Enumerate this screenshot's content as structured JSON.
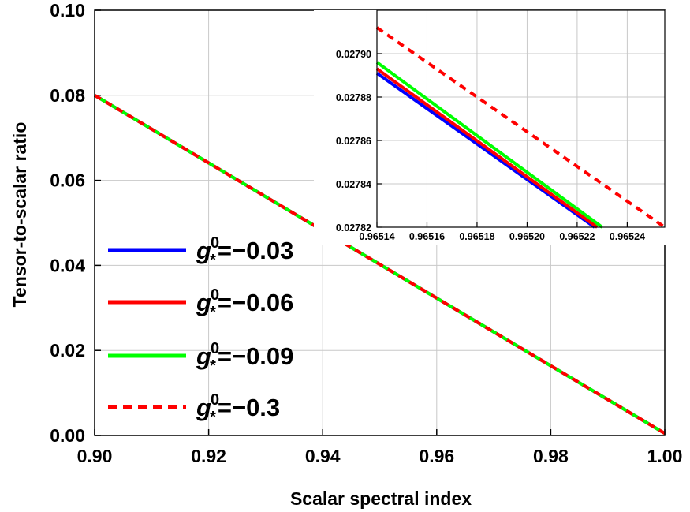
{
  "chart_data": [
    {
      "type": "line",
      "xlabel": "Scalar spectral index",
      "ylabel": "Tensor-to-scalar ratio",
      "xlim": [
        0.9,
        1.0
      ],
      "ylim": [
        0.0,
        0.1
      ],
      "xticks": [
        "0.90",
        "0.92",
        "0.94",
        "0.96",
        "0.98",
        "1.00"
      ],
      "yticks": [
        "0.00",
        "0.02",
        "0.04",
        "0.06",
        "0.08",
        "0.10"
      ],
      "grid": true,
      "legend_position": "bottom-left",
      "series": [
        {
          "name": "=−0.03",
          "color": "#0000ff",
          "style": "solid",
          "x": [
            0.9,
            1.0
          ],
          "y": [
            0.08,
            0.0005
          ]
        },
        {
          "name": "=−0.06",
          "color": "#ff0000",
          "style": "solid",
          "x": [
            0.9,
            1.0
          ],
          "y": [
            0.08,
            0.0005
          ]
        },
        {
          "name": "=−0.09",
          "color": "#00ff00",
          "style": "solid",
          "x": [
            0.9,
            1.0
          ],
          "y": [
            0.08,
            0.0005
          ]
        },
        {
          "name": "=−0.3",
          "color": "#ff0000",
          "style": "dashed",
          "x": [
            0.9,
            1.0
          ],
          "y": [
            0.08,
            0.0005
          ]
        }
      ],
      "legend_symbol": {
        "base": "g",
        "sub": "*",
        "sup": "0"
      }
    },
    {
      "type": "line",
      "inset": true,
      "xlim": [
        0.96514,
        0.965255
      ],
      "ylim": [
        0.02782,
        0.02792
      ],
      "xticks": [
        "0.96514",
        "0.96516",
        "0.96518",
        "0.96520",
        "0.96522",
        "0.96524"
      ],
      "yticks": [
        "0.02782",
        "0.02784",
        "0.02786",
        "0.02788",
        "0.02790"
      ],
      "grid": true,
      "series": [
        {
          "name": "=−0.03",
          "color": "#0000ff",
          "style": "solid",
          "x": [
            0.96514,
            0.965227
          ],
          "y": [
            0.027891,
            0.02782
          ]
        },
        {
          "name": "=−0.06",
          "color": "#ff0000",
          "style": "solid",
          "x": [
            0.96514,
            0.965228
          ],
          "y": [
            0.027893,
            0.02782
          ]
        },
        {
          "name": "=−0.09",
          "color": "#00ff00",
          "style": "solid",
          "x": [
            0.96514,
            0.96523
          ],
          "y": [
            0.027896,
            0.02782
          ]
        },
        {
          "name": "=−0.3",
          "color": "#ff0000",
          "style": "dashed",
          "x": [
            0.96514,
            0.965255
          ],
          "y": [
            0.027912,
            0.02782
          ]
        }
      ]
    }
  ]
}
